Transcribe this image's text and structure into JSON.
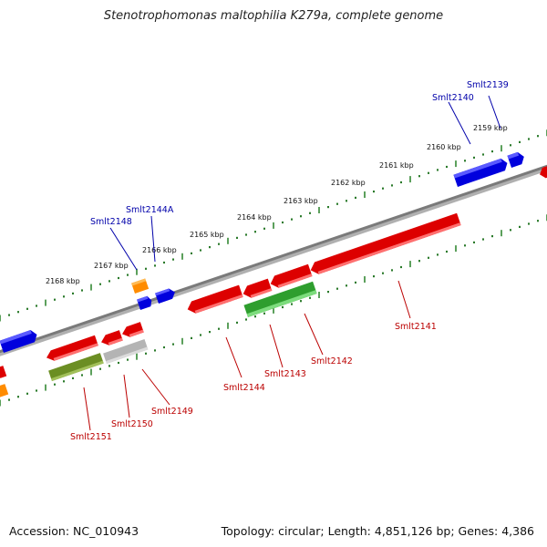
{
  "title": "Stenotrophomonas maltophilia K279a, complete genome",
  "footer": {
    "accession": "Accession: NC_010943",
    "summary": "Topology: circular; Length: 4,851,126 bp; Genes: 4,386"
  },
  "colors": {
    "backbone": "#808080",
    "tick_major": "#338833",
    "forward_gene": "#0000dd",
    "reverse_gene": "#dd0000",
    "orange_gene": "#ff8c00",
    "green_gene": "#2e9e2e",
    "olive_gene": "#6b8e23",
    "gray_gene": "#b4b4b4",
    "forward_label": "#0000aa",
    "reverse_label": "#bb0000"
  },
  "ruler": {
    "labels": [
      "2159 kbp",
      "2160 kbp",
      "2161 kbp",
      "2162 kbp",
      "2163 kbp",
      "2164 kbp",
      "2165 kbp",
      "2166 kbp",
      "2167 kbp",
      "2168 kbp"
    ]
  },
  "forward_labels": [
    "Smlt2139",
    "Smlt2140",
    "Smlt2144A",
    "Smlt2148"
  ],
  "reverse_labels": [
    "Smlt2141",
    "Smlt2142",
    "Smlt2143",
    "Smlt2144",
    "Smlt2149",
    "Smlt2150",
    "Smlt2151"
  ]
}
